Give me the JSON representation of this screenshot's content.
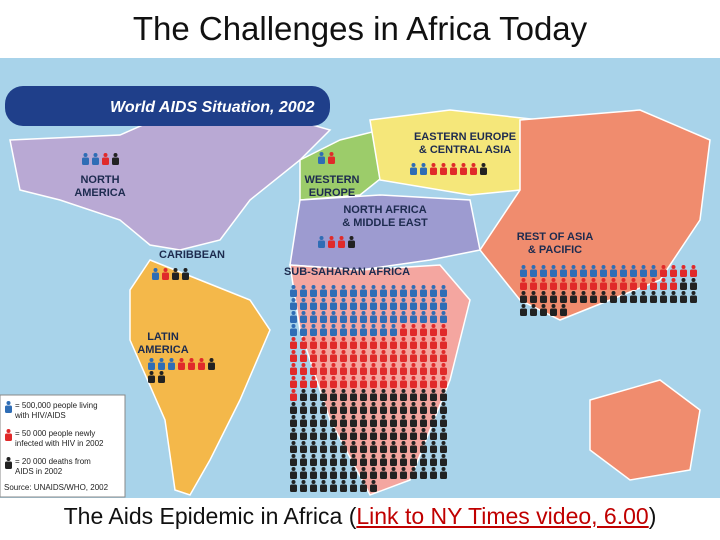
{
  "slide_title": "The Challenges in Africa Today",
  "map": {
    "title": "World AIDS Situation, 2002",
    "regions": [
      {
        "label": [
          "NORTH",
          "AMERICA"
        ],
        "figures": {
          "living": 2,
          "new": 1,
          "deaths": 1
        }
      },
      {
        "label": [
          "WESTERN",
          "EUROPE"
        ],
        "figures": {
          "living": 1,
          "new": 1,
          "deaths": 0
        }
      },
      {
        "label": [
          "EASTERN EUROPE",
          "& CENTRAL ASIA"
        ],
        "figures": {
          "living": 2,
          "new": 5,
          "deaths": 1
        }
      },
      {
        "label": [
          "NORTH AFRICA",
          "& MIDDLE EAST"
        ],
        "figures": {
          "living": 1,
          "new": 2,
          "deaths": 1
        }
      },
      {
        "label": [
          "CARIBBEAN"
        ],
        "figures": {
          "living": 1,
          "new": 1,
          "deaths": 2
        }
      },
      {
        "label": [
          "SUB-SAHARAN AFRICA"
        ],
        "figures": {
          "living": 59,
          "new": 70,
          "deaths": 120
        }
      },
      {
        "label": [
          "REST OF ASIA",
          "& PACIFIC"
        ],
        "figures": {
          "living": 14,
          "new": 20,
          "deaths": 25
        }
      },
      {
        "label": [
          "LATIN",
          "AMERICA"
        ],
        "figures": {
          "living": 3,
          "new": 3,
          "deaths": 3
        }
      }
    ],
    "legend": [
      {
        "text": [
          "= 500,000 people living",
          "with HIV/AIDS"
        ],
        "color": "#2f6db5"
      },
      {
        "text": [
          "= 50 000 people newly",
          "infected with HIV in 2002"
        ],
        "color": "#e02a2a"
      },
      {
        "text": [
          "= 20 000 deaths from",
          "AIDS in 2002"
        ],
        "color": "#222222"
      }
    ],
    "source": "Source: UNAIDS/WHO, 2002"
  },
  "caption": {
    "prefix": "The Aids Epidemic in Africa (",
    "link": "Link to NY Times video, 6.00",
    "suffix": ")"
  }
}
